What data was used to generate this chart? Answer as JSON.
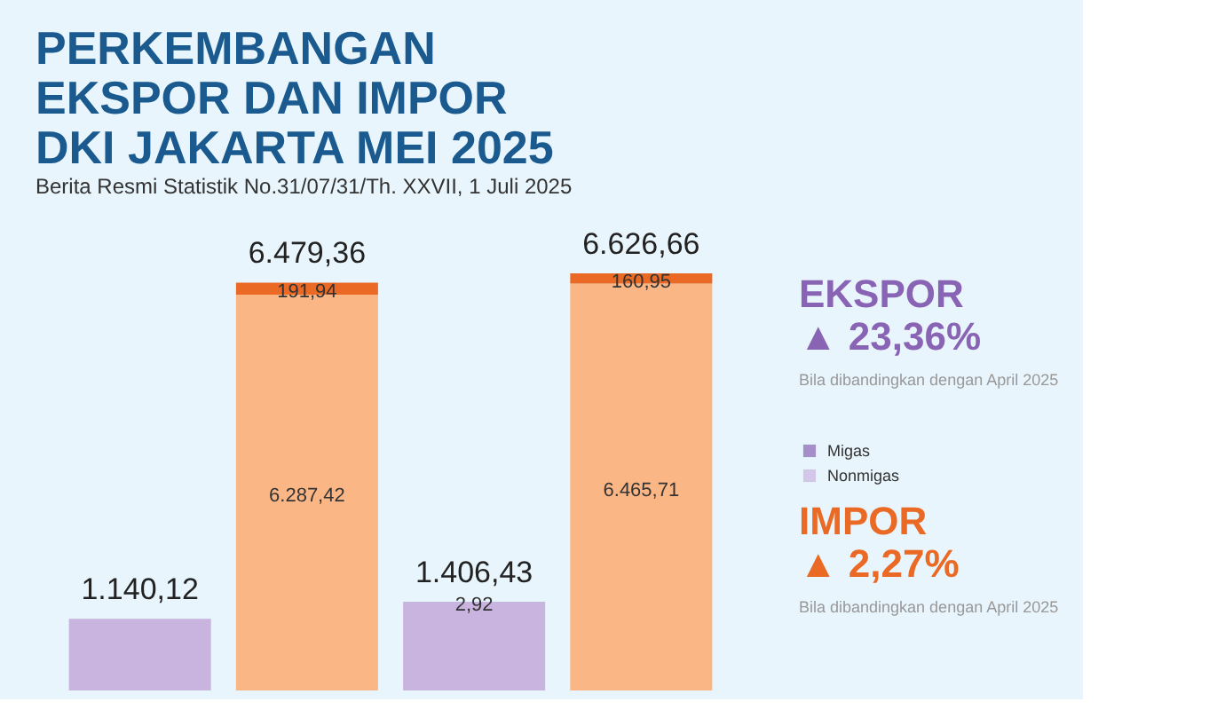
{
  "chart_data": {
    "type": "bar",
    "title": [
      "PERKEMBANGAN",
      "EKSPOR DAN IMPOR",
      "DKI JAKARTA MEI 2025"
    ],
    "subtitle": "Berita Resmi Statistik No.31/07/31/Th. XXVII, 1 Juli 2025",
    "categories": [
      null,
      null,
      null,
      null
    ],
    "stacked": true,
    "tick_labels": false,
    "legend": "right",
    "series": [
      {
        "name": "Nonmigas",
        "color": "#c9b3df",
        "values": [
          1140.12,
          null,
          1403.51,
          null
        ],
        "value_labels": [
          null,
          null,
          null,
          null
        ]
      },
      {
        "name": "Migas",
        "color": "#8a64b4",
        "values": [
          null,
          null,
          2.92,
          null
        ],
        "value_labels": [
          null,
          null,
          "2,92",
          null
        ]
      },
      {
        "color": "#fbb686",
        "values": [
          null,
          6287.42,
          null,
          6465.71
        ],
        "value_labels": [
          null,
          "6.287,42",
          null,
          "6.465,71"
        ]
      },
      {
        "color": "#ea6a25",
        "values": [
          null,
          191.94,
          null,
          160.95
        ],
        "value_labels": [
          null,
          "191,94",
          null,
          "160,95"
        ]
      }
    ],
    "totals": [
      "1.140,12",
      "6.479,36",
      "1.406,43",
      "6.626,66"
    ],
    "annotations": [
      "EKSPOR",
      "▲ 23,36%",
      "Bila dibandingkan dengan April 2025",
      "IMPOR",
      "▲ 2,27%",
      "Bila dibandingkan dengan April 2025"
    ]
  }
}
